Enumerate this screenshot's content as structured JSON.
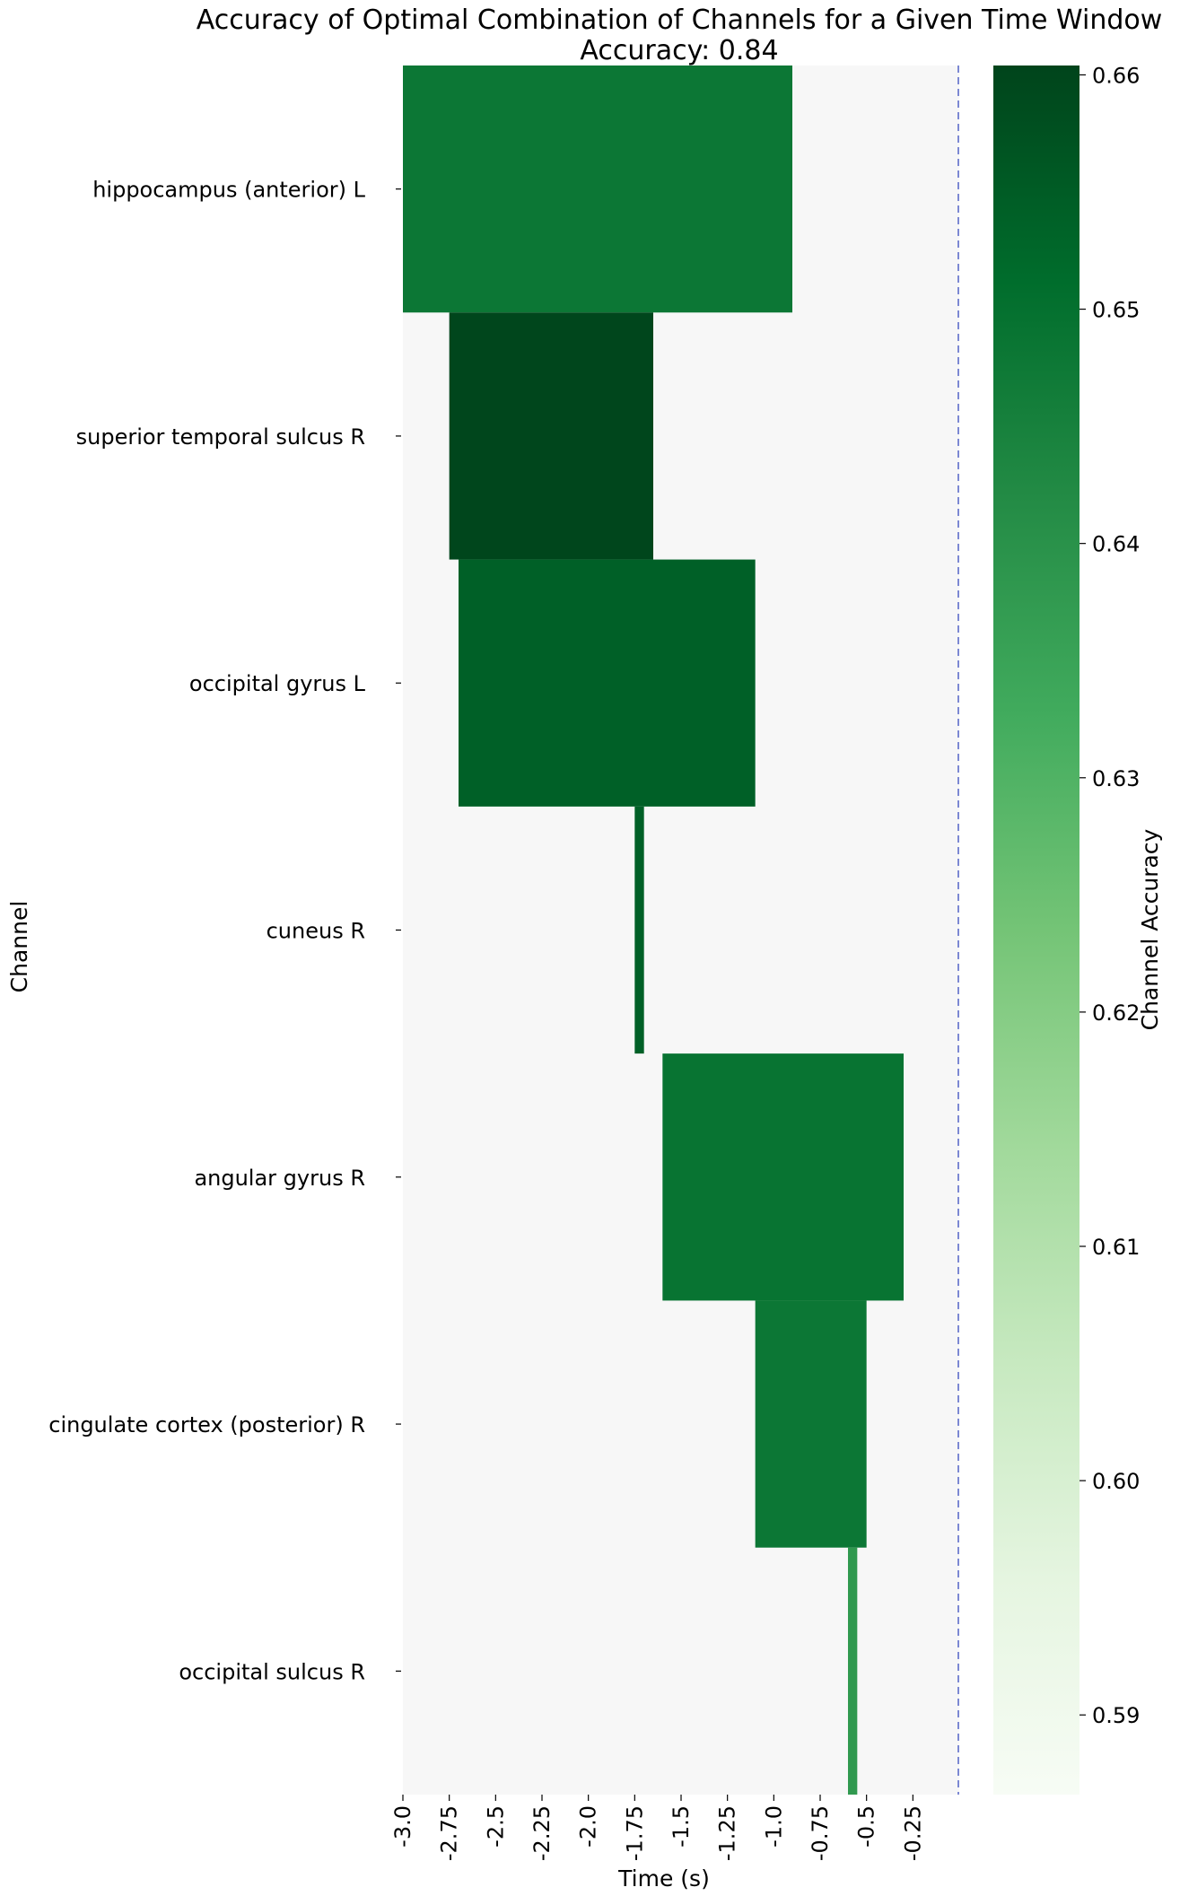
{
  "chart_data": {
    "type": "heatmap",
    "title": "Accuracy of Optimal Combination of Channels for a Given Time Window",
    "subtitle": "Accuracy: 0.84",
    "xlabel": "Time (s)",
    "ylabel": "Channel",
    "colorbar_label": "Channel Accuracy",
    "xlim": [
      -3.0,
      0.0
    ],
    "x_ticks": [
      "-3.0",
      "-2.75",
      "-2.5",
      "-2.25",
      "-2.0",
      "-1.75",
      "-1.5",
      "-1.25",
      "-1.0",
      "-0.75",
      "-0.5",
      "-0.25"
    ],
    "x_tick_values": [
      -3.0,
      -2.75,
      -2.5,
      -2.25,
      -2.0,
      -1.75,
      -1.5,
      -1.25,
      -1.0,
      -0.75,
      -0.5,
      -0.25
    ],
    "colorbar_ticks": [
      "0.66",
      "0.65",
      "0.64",
      "0.63",
      "0.62",
      "0.61",
      "0.60",
      "0.59"
    ],
    "colorbar_tick_values": [
      0.66,
      0.65,
      0.64,
      0.63,
      0.62,
      0.61,
      0.6,
      0.59
    ],
    "colorbar_range": [
      0.5866,
      0.6604
    ],
    "colormap": "Greens",
    "background_color": "#f7f7f7",
    "dashed_line": {
      "x": 0.0,
      "color": "#3b4cc0"
    },
    "channels": [
      {
        "name": "hippocampus (anterior) L",
        "start": -3.0,
        "end": -0.9,
        "accuracy": 0.648
      },
      {
        "name": "superior temporal sulcus R",
        "start": -2.75,
        "end": -1.65,
        "accuracy": 0.66
      },
      {
        "name": "occipital gyrus L",
        "start": -2.7,
        "end": -1.1,
        "accuracy": 0.654
      },
      {
        "name": "cuneus R",
        "start": -1.75,
        "end": -1.7,
        "accuracy": 0.654
      },
      {
        "name": "angular gyrus R",
        "start": -1.6,
        "end": -0.3,
        "accuracy": 0.649
      },
      {
        "name": "cingulate cortex (posterior) R",
        "start": -1.1,
        "end": -0.5,
        "accuracy": 0.648
      },
      {
        "name": "occipital sulcus R",
        "start": -0.6,
        "end": -0.55,
        "accuracy": 0.638
      }
    ]
  }
}
